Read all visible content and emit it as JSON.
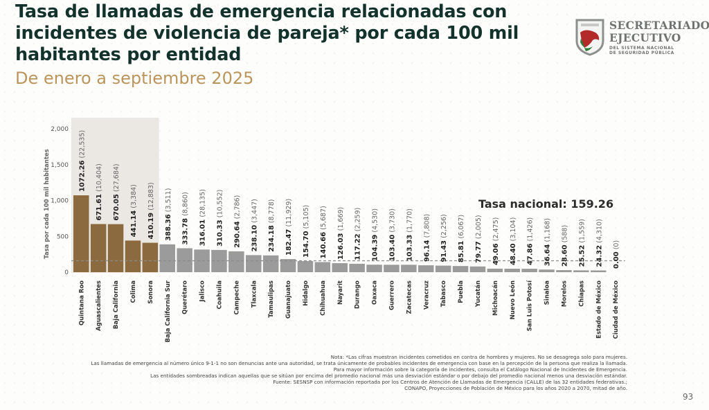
{
  "header": {
    "title": "Tasa de llamadas de emergencia relacionadas con incidentes de violencia de pareja* por cada 100 mil habitantes por entidad",
    "subtitle": "De enero a septiembre 2025"
  },
  "logo": {
    "line1": "SECRETARIADO",
    "line2": "EJECUTIVO",
    "line3": "DEL SISTEMA NACIONAL",
    "line4": "DE SEGURIDAD PÚBLICA"
  },
  "colors": {
    "highlight_bar": "#8c6a3f",
    "normal_bar": "#9b9b9b",
    "shade": "#ebe8e3",
    "title": "#13322b",
    "subtitle": "#bc955c"
  },
  "chart_data": {
    "type": "bar",
    "title": "Tasa de llamadas de emergencia relacionadas con incidentes de violencia de pareja* por cada 100 mil habitantes por entidad",
    "subtitle": "De enero a septiembre 2025",
    "xlabel": "",
    "ylabel": "Tasa por cada 100 mil habitantes",
    "ylim": [
      0,
      2000
    ],
    "yticks": [
      0,
      500,
      1000,
      1500,
      2000
    ],
    "ytick_labels": [
      "0",
      "500",
      "1,000",
      "1,500",
      "2,000"
    ],
    "grid": false,
    "reference_line": {
      "label": "Tasa nacional: 159.26",
      "value": 159.26,
      "style": "dashed"
    },
    "categories": [
      "Quintana Roo",
      "Aguascalientes",
      "Baja California",
      "Colima",
      "Sonora",
      "Baja California Sur",
      "Querétaro",
      "Jalisco",
      "Coahuila",
      "Campeche",
      "Tlaxcala",
      "Tamaulipas",
      "Guanajuato",
      "Hidalgo",
      "Chihuahua",
      "Nayarit",
      "Durango",
      "Oaxaca",
      "Guerrero",
      "Zacatecas",
      "Veracruz",
      "Tabasco",
      "Puebla",
      "Yucatán",
      "Michoacán",
      "Nuevo León",
      "San Luis Potosí",
      "Sinaloa",
      "Morelos",
      "Chiapas",
      "Estado de México",
      "Ciudad de México"
    ],
    "values": [
      1072.26,
      671.61,
      670.05,
      441.14,
      410.19,
      388.36,
      333.78,
      316.01,
      310.33,
      290.64,
      238.1,
      234.18,
      182.47,
      154.7,
      140.66,
      126.03,
      117.22,
      104.39,
      103.4,
      103.33,
      96.14,
      91.43,
      85.81,
      79.77,
      49.06,
      48.4,
      47.86,
      36.64,
      28.6,
      25.52,
      24.32,
      0.0
    ],
    "value_labels": [
      "1072.26",
      "671.61",
      "670.05",
      "441.14",
      "410.19",
      "388.36",
      "333.78",
      "316.01",
      "310.33",
      "290.64",
      "238.10",
      "234.18",
      "182.47",
      "154.70",
      "140.66",
      "126.03",
      "117.22",
      "104.39",
      "103.40",
      "103.33",
      "96.14",
      "91.43",
      "85.81",
      "79.77",
      "49.06",
      "48.40",
      "47.86",
      "36.64",
      "28.60",
      "25.52",
      "24.32",
      "0.00"
    ],
    "counts": [
      "(22,535)",
      "(10,404)",
      "(27,684)",
      "(3,384)",
      "(12,883)",
      "(3,511)",
      "(8,860)",
      "(28,135)",
      "(10,552)",
      "(2,786)",
      "(3,447)",
      "(8,778)",
      "(11,929)",
      "(5,105)",
      "(5,687)",
      "(1,669)",
      "(2,259)",
      "(4,530)",
      "(3,730)",
      "(1,770)",
      "(7,808)",
      "(2,256)",
      "(6,067)",
      "(2,005)",
      "(2,475)",
      "(3,104)",
      "(1,426)",
      "(1,168)",
      "(588)",
      "(1,559)",
      "(4,310)",
      "(0)"
    ],
    "highlighted": [
      "Quintana Roo",
      "Aguascalientes",
      "Baja California",
      "Colima",
      "Sonora"
    ]
  },
  "notes": [
    "Nota: *Las cifras muestran incidentes cometidos en contra de hombres y mujeres. No se desagrega solo para mujeres.",
    "Las llamadas de emergencia al número único 9-1-1 no son denuncias ante una autoridad, se trata únicamente de probables incidentes de emergencia con base en la percepción de la persona que realiza la llamada.",
    "Para mayor información sobre la categoría de incidentes, consulta el Catálogo Nacional de Incidentes de Emergencia.",
    "Las entidades sombreadas indican aquellas que se sitúan por encima del promedio nacional más una desviación estándar o por debajo del promedio nacional menos una desviación estándar.",
    "Fuente: SESNSP con información reportada por los Centros de Atención de Llamadas de Emergencia (CALLE) de las 32 entidades federativas.;",
    "CONAPO, Proyecciones de Población de México para los años 2020 a 2070, mitad de año."
  ],
  "page_number": "93"
}
